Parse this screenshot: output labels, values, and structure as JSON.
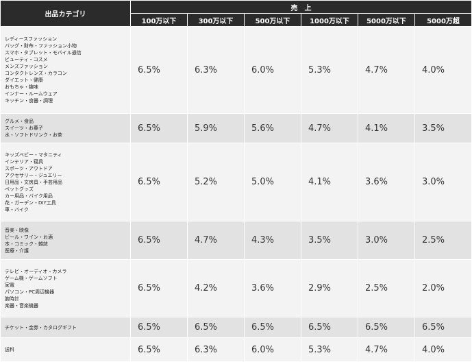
{
  "table": {
    "category_header": "出品カテゴリ",
    "sales_header": "売　上",
    "columns": [
      "100万以下",
      "300万以下",
      "500万以下",
      "1000万以下",
      "5000万以下",
      "5000万超"
    ],
    "rows": [
      {
        "categories": [
          "レディースファッション",
          "バッグ・財布・ファッション小物",
          "スマホ・タブレット・モバイル通信",
          "ビューティ・コスメ",
          "メンズファッション",
          "コンタクトレンズ・カラコン",
          "ダイエット・健康",
          "おもちゃ・趣味",
          "インナー・ルームウェア",
          "キッチン・食器・調理"
        ],
        "rates": [
          "6.5%",
          "6.3%",
          "6.0%",
          "5.3%",
          "4.7%",
          "4.0%"
        ]
      },
      {
        "categories": [
          "グルメ・食品",
          "スイーツ・お菓子",
          "水・ソフトドリンク・お茶"
        ],
        "rates": [
          "6.5%",
          "5.9%",
          "5.6%",
          "4.7%",
          "4.1%",
          "3.5%"
        ]
      },
      {
        "categories": [
          "キッズベビー・マタニティ",
          "インテリア・寝具",
          "スポーツ・アウトドア",
          "アクセサリー・ジュエリー",
          "日用品・文房具・手芸用品",
          "ペットグッズ",
          "カー用品・バイク用品",
          "花・ガーデン・DIY工具",
          "車・バイク"
        ],
        "rates": [
          "6.5%",
          "5.2%",
          "5.0%",
          "4.1%",
          "3.6%",
          "3.0%"
        ]
      },
      {
        "categories": [
          "音楽・映像",
          "ビール・ワイン・お酒",
          "本・コミック・雑誌",
          "医療・介護"
        ],
        "rates": [
          "6.5%",
          "4.7%",
          "4.3%",
          "3.5%",
          "3.0%",
          "2.5%"
        ]
      },
      {
        "categories": [
          "テレビ・オーディオ・カメラ",
          "ゲーム機・ゲームソフト",
          "家電",
          "パソコン・PC周辺機器",
          "腕時計",
          "楽器・音楽機器"
        ],
        "rates": [
          "6.5%",
          "4.2%",
          "3.6%",
          "2.9%",
          "2.5%",
          "2.0%"
        ]
      },
      {
        "categories": [
          "チケット・金券・カタログギフト"
        ],
        "rates": [
          "6.5%",
          "6.5%",
          "6.5%",
          "6.5%",
          "6.5%",
          "6.5%"
        ]
      },
      {
        "categories": [
          "送料"
        ],
        "rates": [
          "6.5%",
          "6.3%",
          "6.0%",
          "5.3%",
          "4.7%",
          "4.0%"
        ]
      }
    ]
  }
}
